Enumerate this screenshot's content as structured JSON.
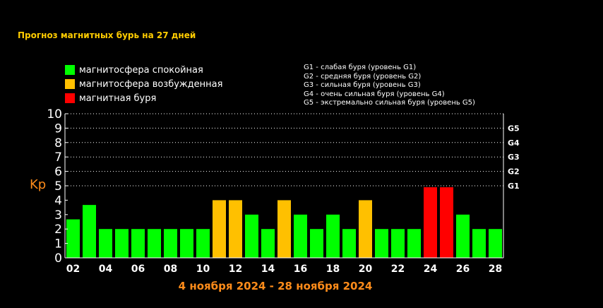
{
  "title": "Прогноз магнитных бурь на 27 дней",
  "legend": [
    {
      "label": "магнитосфера спокойная",
      "color": "#00ff00"
    },
    {
      "label": "магнитосфера возбужденная",
      "color": "#ffc000"
    },
    {
      "label": "магнитная буря",
      "color": "#ff0000"
    }
  ],
  "storm_scale": [
    "G1 - слабая буря (уровень G1)",
    "G2 - средняя буря (уровень G2)",
    "G3 - сильная буря (уровень G3)",
    "G4 - очень сильная буря (уровень G4)",
    "G5 - экстремально сильная буря (уровень G5)"
  ],
  "date_range": "4 ноября 2024 - 28 ноября 2024",
  "chart_data": {
    "type": "bar",
    "ylabel": "Kp",
    "ylim": [
      0,
      10
    ],
    "yticks": [
      "0",
      "1",
      "2",
      "3",
      "4",
      "5",
      "6",
      "7",
      "8",
      "9",
      "10"
    ],
    "right_axis_labels": [
      {
        "value": 5,
        "label": "G1"
      },
      {
        "value": 6,
        "label": "G2"
      },
      {
        "value": 7,
        "label": "G3"
      },
      {
        "value": 8,
        "label": "G4"
      },
      {
        "value": 9,
        "label": "G5"
      }
    ],
    "xtick_labels": [
      "02",
      "04",
      "06",
      "08",
      "10",
      "12",
      "14",
      "16",
      "18",
      "20",
      "22",
      "24",
      "26",
      "28"
    ],
    "grid": "dotted horizontal at 5–10",
    "values": [
      2.67,
      3.67,
      2,
      2,
      2,
      2,
      2,
      2,
      2,
      4,
      4,
      3,
      2,
      4,
      3,
      2,
      3,
      2,
      4,
      2,
      2,
      2,
      4.9,
      4.9,
      3,
      2,
      2
    ],
    "colors": [
      "#00ff00",
      "#00ff00",
      "#00ff00",
      "#00ff00",
      "#00ff00",
      "#00ff00",
      "#00ff00",
      "#00ff00",
      "#00ff00",
      "#ffc000",
      "#ffc000",
      "#00ff00",
      "#00ff00",
      "#ffc000",
      "#00ff00",
      "#00ff00",
      "#00ff00",
      "#00ff00",
      "#ffc000",
      "#00ff00",
      "#00ff00",
      "#00ff00",
      "#ff0000",
      "#ff0000",
      "#00ff00",
      "#00ff00",
      "#00ff00"
    ]
  }
}
